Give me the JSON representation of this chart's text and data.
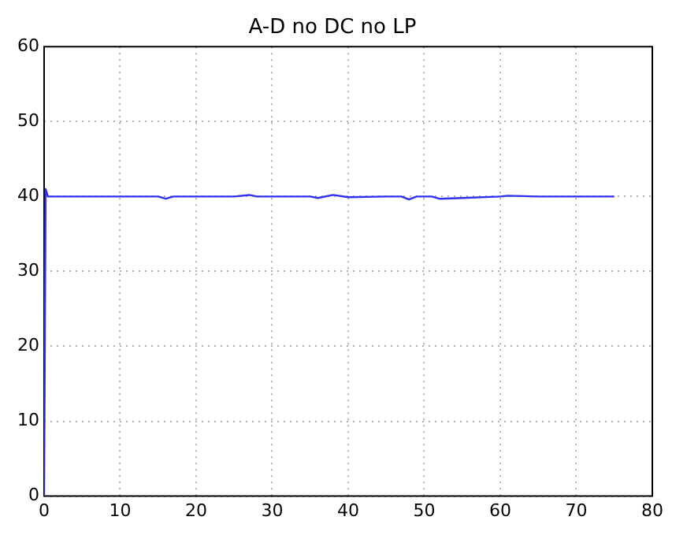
{
  "chart_data": {
    "type": "line",
    "title": "A-D no DC no LP",
    "x": [
      0,
      0.2,
      0.5,
      1,
      5,
      8,
      10,
      15,
      16,
      17,
      20,
      25,
      27,
      28,
      30,
      35,
      36,
      38,
      40,
      45,
      47,
      48,
      49,
      51,
      52,
      55,
      60,
      61,
      65,
      70,
      75
    ],
    "series": [
      {
        "color": "#3030f0",
        "values": [
          0,
          41,
          40,
          40,
          40,
          40,
          40,
          40,
          39.7,
          40,
          40,
          40,
          40.2,
          40,
          40,
          40,
          39.8,
          40.2,
          39.9,
          40,
          40,
          39.6,
          40,
          40,
          39.7,
          39.8,
          40,
          40.1,
          40,
          40,
          40
        ]
      }
    ],
    "xlim": [
      0,
      80
    ],
    "xticks": [
      0,
      10,
      20,
      30,
      40,
      50,
      60,
      70,
      80
    ],
    "ylim": [
      0,
      60
    ],
    "yticks": [
      0,
      10,
      20,
      30,
      40,
      50,
      60
    ],
    "grid": true,
    "legend": false,
    "marker": "none",
    "line_style": "solid"
  }
}
